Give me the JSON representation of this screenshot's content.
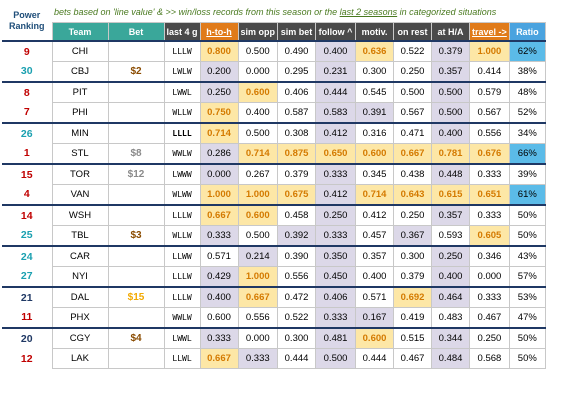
{
  "header": {
    "power_ranking": "Power Ranking",
    "note_prefix": "bets based on 'line value' & >> ",
    "note_mid": "win/loss records from this season or the ",
    "note_under": "last 2 seasons",
    "note_suffix": " in categorized situations",
    "columns": [
      "Team",
      "Bet",
      "last 4 g",
      "h-to-h",
      "sim opp",
      "sim bet",
      "follow ^",
      "motiv.",
      "on rest",
      "at H/A",
      "travel ->",
      "Ratio"
    ]
  },
  "colors": {
    "header_teal": "#3aa79a",
    "header_orange": "#e07b1a",
    "header_blue": "#4aa3df",
    "highlight_bg": "#fde7a6",
    "highlight_fg": "#d47a00"
  },
  "matchups": [
    {
      "rows": [
        {
          "rank": "9",
          "rank_color": "red",
          "team": "CHI",
          "bet": "",
          "last4": "LLLW",
          "last4_bold": false,
          "stats": [
            "0.800",
            "0.500",
            "0.490",
            "0.400",
            "0.636",
            "0.522",
            "0.379",
            "1.000"
          ],
          "hl": [
            0,
            4,
            7
          ],
          "sh": [
            3,
            6
          ],
          "ratio": "62%",
          "ratio_hi": true
        },
        {
          "rank": "30",
          "rank_color": "teal",
          "team": "CBJ",
          "bet": "$2",
          "bet_color": "brown",
          "last4": "LWLW",
          "last4_bold": false,
          "stats": [
            "0.200",
            "0.000",
            "0.295",
            "0.231",
            "0.300",
            "0.250",
            "0.357",
            "0.414"
          ],
          "hl": [],
          "sh": [
            0,
            3,
            6
          ],
          "ratio": "38%",
          "ratio_hi": false
        }
      ]
    },
    {
      "rows": [
        {
          "rank": "8",
          "rank_color": "red",
          "team": "PIT",
          "bet": "",
          "last4": "LWWL",
          "last4_bold": false,
          "stats": [
            "0.250",
            "0.600",
            "0.406",
            "0.444",
            "0.545",
            "0.500",
            "0.500",
            "0.579"
          ],
          "hl": [
            1
          ],
          "sh": [
            0,
            3,
            6
          ],
          "ratio": "48%",
          "ratio_hi": false
        },
        {
          "rank": "7",
          "rank_color": "red",
          "team": "PHI",
          "bet": "",
          "last4": "WLLW",
          "last4_bold": false,
          "stats": [
            "0.750",
            "0.400",
            "0.587",
            "0.583",
            "0.391",
            "0.567",
            "0.500",
            "0.567"
          ],
          "hl": [
            0
          ],
          "sh": [
            3,
            4,
            6
          ],
          "ratio": "52%",
          "ratio_hi": false
        }
      ]
    },
    {
      "rows": [
        {
          "rank": "26",
          "rank_color": "teal",
          "team": "MIN",
          "bet": "",
          "last4": "LLLL",
          "last4_bold": true,
          "stats": [
            "0.714",
            "0.500",
            "0.308",
            "0.412",
            "0.316",
            "0.471",
            "0.400",
            "0.556"
          ],
          "hl": [
            0
          ],
          "sh": [
            3,
            6
          ],
          "ratio": "34%",
          "ratio_hi": false
        },
        {
          "rank": "1",
          "rank_color": "red",
          "team": "STL",
          "bet": "$8",
          "bet_color": "grey",
          "last4": "WWLW",
          "last4_bold": false,
          "stats": [
            "0.286",
            "0.714",
            "0.875",
            "0.650",
            "0.600",
            "0.667",
            "0.781",
            "0.676"
          ],
          "hl": [
            1,
            2,
            3,
            4,
            5,
            6,
            7
          ],
          "sh": [
            0
          ],
          "ratio": "66%",
          "ratio_hi": true
        }
      ]
    },
    {
      "rows": [
        {
          "rank": "15",
          "rank_color": "red",
          "team": "TOR",
          "bet": "$12",
          "bet_color": "grey",
          "last4": "LWWW",
          "last4_bold": false,
          "stats": [
            "0.000",
            "0.267",
            "0.379",
            "0.333",
            "0.345",
            "0.438",
            "0.448",
            "0.333"
          ],
          "hl": [],
          "sh": [
            0,
            3,
            6
          ],
          "ratio": "39%",
          "ratio_hi": false
        },
        {
          "rank": "4",
          "rank_color": "red",
          "team": "VAN",
          "bet": "",
          "last4": "WLWW",
          "last4_bold": false,
          "stats": [
            "1.000",
            "1.000",
            "0.675",
            "0.412",
            "0.714",
            "0.643",
            "0.615",
            "0.651"
          ],
          "hl": [
            0,
            1,
            2,
            4,
            5,
            6,
            7
          ],
          "sh": [
            3
          ],
          "ratio": "61%",
          "ratio_hi": true
        }
      ]
    },
    {
      "rows": [
        {
          "rank": "14",
          "rank_color": "red",
          "team": "WSH",
          "bet": "",
          "last4": "LLLW",
          "last4_bold": false,
          "stats": [
            "0.667",
            "0.600",
            "0.458",
            "0.250",
            "0.412",
            "0.250",
            "0.357",
            "0.333"
          ],
          "hl": [
            0,
            1
          ],
          "sh": [
            3,
            6
          ],
          "ratio": "50%",
          "ratio_hi": false
        },
        {
          "rank": "25",
          "rank_color": "teal",
          "team": "TBL",
          "bet": "$3",
          "bet_color": "brown",
          "last4": "WLLW",
          "last4_bold": false,
          "stats": [
            "0.333",
            "0.500",
            "0.392",
            "0.333",
            "0.457",
            "0.367",
            "0.593",
            "0.605"
          ],
          "hl": [
            7
          ],
          "sh": [
            0,
            2,
            3,
            5
          ],
          "ratio": "50%",
          "ratio_hi": false
        }
      ]
    },
    {
      "rows": [
        {
          "rank": "24",
          "rank_color": "teal",
          "team": "CAR",
          "bet": "",
          "last4": "LLWW",
          "last4_bold": false,
          "stats": [
            "0.571",
            "0.214",
            "0.390",
            "0.350",
            "0.357",
            "0.300",
            "0.250",
            "0.346"
          ],
          "hl": [],
          "sh": [
            1,
            3,
            6
          ],
          "ratio": "43%",
          "ratio_hi": false
        },
        {
          "rank": "27",
          "rank_color": "teal",
          "team": "NYI",
          "bet": "",
          "last4": "LLLW",
          "last4_bold": false,
          "stats": [
            "0.429",
            "1.000",
            "0.556",
            "0.450",
            "0.400",
            "0.379",
            "0.400",
            "0.000"
          ],
          "hl": [
            1
          ],
          "sh": [
            0,
            3,
            6
          ],
          "ratio": "57%",
          "ratio_hi": false
        }
      ]
    },
    {
      "rows": [
        {
          "rank": "21",
          "rank_color": "navy",
          "team": "DAL",
          "bet": "$15",
          "bet_color": "gold",
          "last4": "LLLW",
          "last4_bold": false,
          "stats": [
            "0.400",
            "0.667",
            "0.472",
            "0.406",
            "0.571",
            "0.692",
            "0.464",
            "0.333"
          ],
          "hl": [
            1,
            5
          ],
          "sh": [
            0,
            3,
            6
          ],
          "ratio": "53%",
          "ratio_hi": false
        },
        {
          "rank": "11",
          "rank_color": "red",
          "team": "PHX",
          "bet": "",
          "last4": "WWLW",
          "last4_bold": false,
          "stats": [
            "0.600",
            "0.556",
            "0.522",
            "0.333",
            "0.167",
            "0.419",
            "0.483",
            "0.467"
          ],
          "hl": [],
          "sh": [
            3,
            4
          ],
          "ratio": "47%",
          "ratio_hi": false
        }
      ]
    },
    {
      "rows": [
        {
          "rank": "20",
          "rank_color": "navy",
          "team": "CGY",
          "bet": "$4",
          "bet_color": "brown",
          "last4": "LWWL",
          "last4_bold": false,
          "stats": [
            "0.333",
            "0.000",
            "0.300",
            "0.481",
            "0.600",
            "0.515",
            "0.344",
            "0.250"
          ],
          "hl": [
            4
          ],
          "sh": [
            0,
            3,
            6
          ],
          "ratio": "50%",
          "ratio_hi": false
        },
        {
          "rank": "12",
          "rank_color": "red",
          "team": "LAK",
          "bet": "",
          "last4": "LLWL",
          "last4_bold": false,
          "stats": [
            "0.667",
            "0.333",
            "0.444",
            "0.500",
            "0.444",
            "0.467",
            "0.484",
            "0.568"
          ],
          "hl": [
            0
          ],
          "sh": [
            1,
            3,
            6
          ],
          "ratio": "50%",
          "ratio_hi": false
        }
      ]
    }
  ]
}
